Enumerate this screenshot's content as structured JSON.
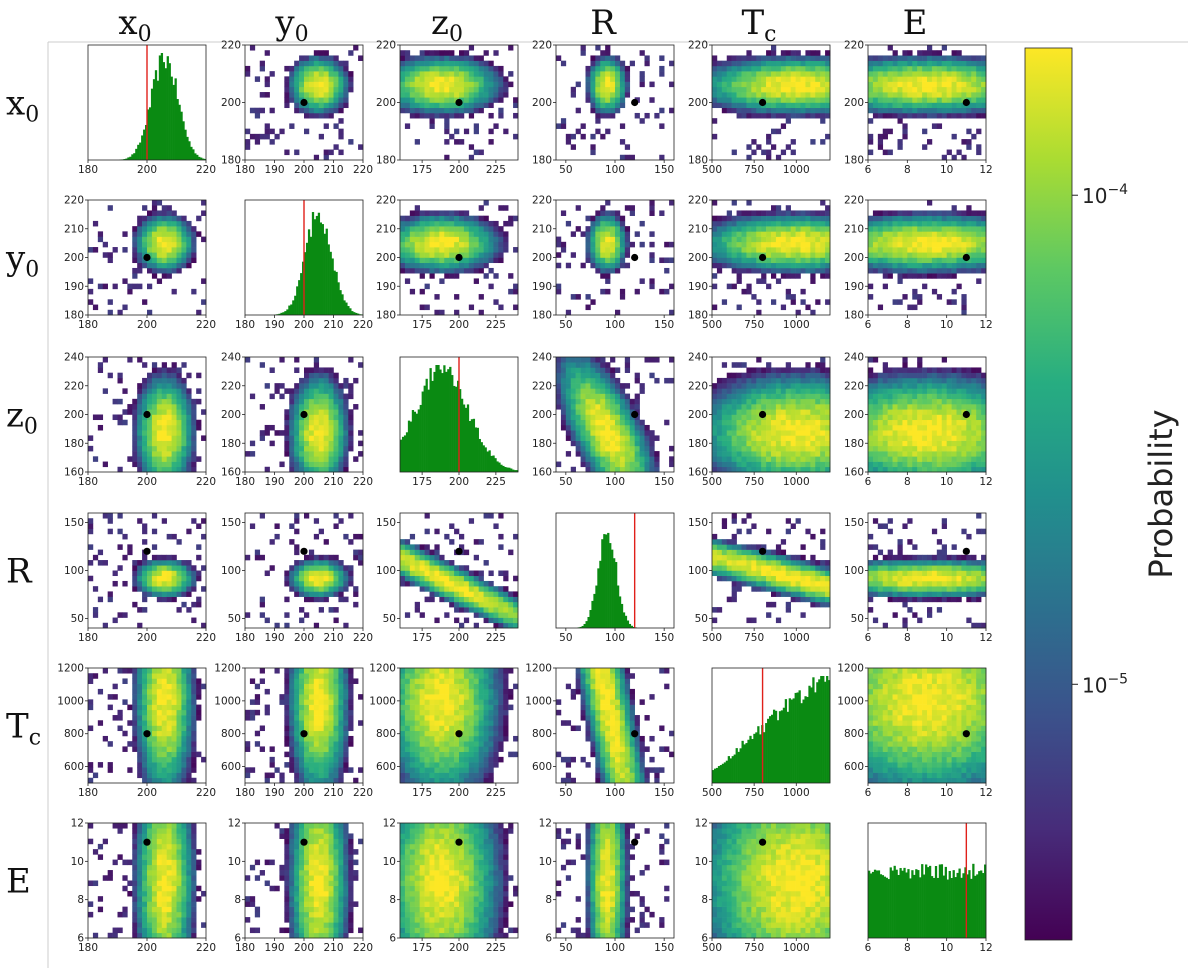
{
  "chart_data": {
    "type": "heatmap",
    "title": "",
    "parameters": [
      "x0",
      "y0",
      "z0",
      "R",
      "Tc",
      "E"
    ],
    "column_headers": [
      {
        "main": "x",
        "sub": "0"
      },
      {
        "main": "y",
        "sub": "0"
      },
      {
        "main": "z",
        "sub": "0"
      },
      {
        "main": "R",
        "sub": ""
      },
      {
        "main": "T",
        "sub": "c"
      },
      {
        "main": "E",
        "sub": ""
      }
    ],
    "row_headers": [
      {
        "main": "x",
        "sub": "0"
      },
      {
        "main": "y",
        "sub": "0"
      },
      {
        "main": "z",
        "sub": "0"
      },
      {
        "main": "R",
        "sub": ""
      },
      {
        "main": "T",
        "sub": "c"
      },
      {
        "main": "E",
        "sub": ""
      }
    ],
    "axes": [
      {
        "name": "x0",
        "range": [
          180,
          220
        ],
        "ticks": [
          180,
          200,
          220
        ],
        "true_value": 200,
        "peak": 206,
        "spread": 5
      },
      {
        "name": "y0",
        "range": [
          180,
          220
        ],
        "ticks": [
          180,
          190,
          200,
          210,
          220
        ],
        "true_value": 200,
        "peak": 205,
        "spread": 5
      },
      {
        "name": "z0",
        "range": [
          160,
          240
        ],
        "ticks": [
          175,
          200,
          225
        ],
        "y_ticks": [
          160,
          180,
          200,
          220,
          240
        ],
        "true_value": 200,
        "peak": 188,
        "spread": 20
      },
      {
        "name": "R",
        "range": [
          40,
          160
        ],
        "ticks": [
          50,
          100,
          150
        ],
        "y_ticks": [
          50,
          100,
          150
        ],
        "true_value": 120,
        "peak": 92,
        "spread": 10
      },
      {
        "name": "Tc",
        "range": [
          500,
          1200
        ],
        "ticks": [
          500,
          750,
          1000
        ],
        "y_ticks": [
          600,
          800,
          1000,
          1200
        ],
        "true_value": 800,
        "peak": 1000,
        "spread": 300
      },
      {
        "name": "E",
        "range": [
          6,
          12
        ],
        "ticks": [
          6,
          8,
          10,
          12
        ],
        "true_value": 11,
        "peak": 9,
        "spread": 3
      }
    ],
    "diagonal": "marginal histograms with red line at true value",
    "off_diagonal": "2D probability heatmaps with black dot at true value",
    "colorbar": {
      "label": "Probability",
      "scale": "log",
      "range": [
        3e-06,
        0.0002
      ],
      "tick_labels": [
        {
          "base": "10",
          "exp": "−4",
          "value": 0.0001
        },
        {
          "base": "10",
          "exp": "−5",
          "value": 1e-05
        }
      ],
      "colormap": "viridis"
    },
    "colors": {
      "histogram": "#0a8a12",
      "true_line": "#e0201a",
      "true_dot": "#000000"
    }
  }
}
